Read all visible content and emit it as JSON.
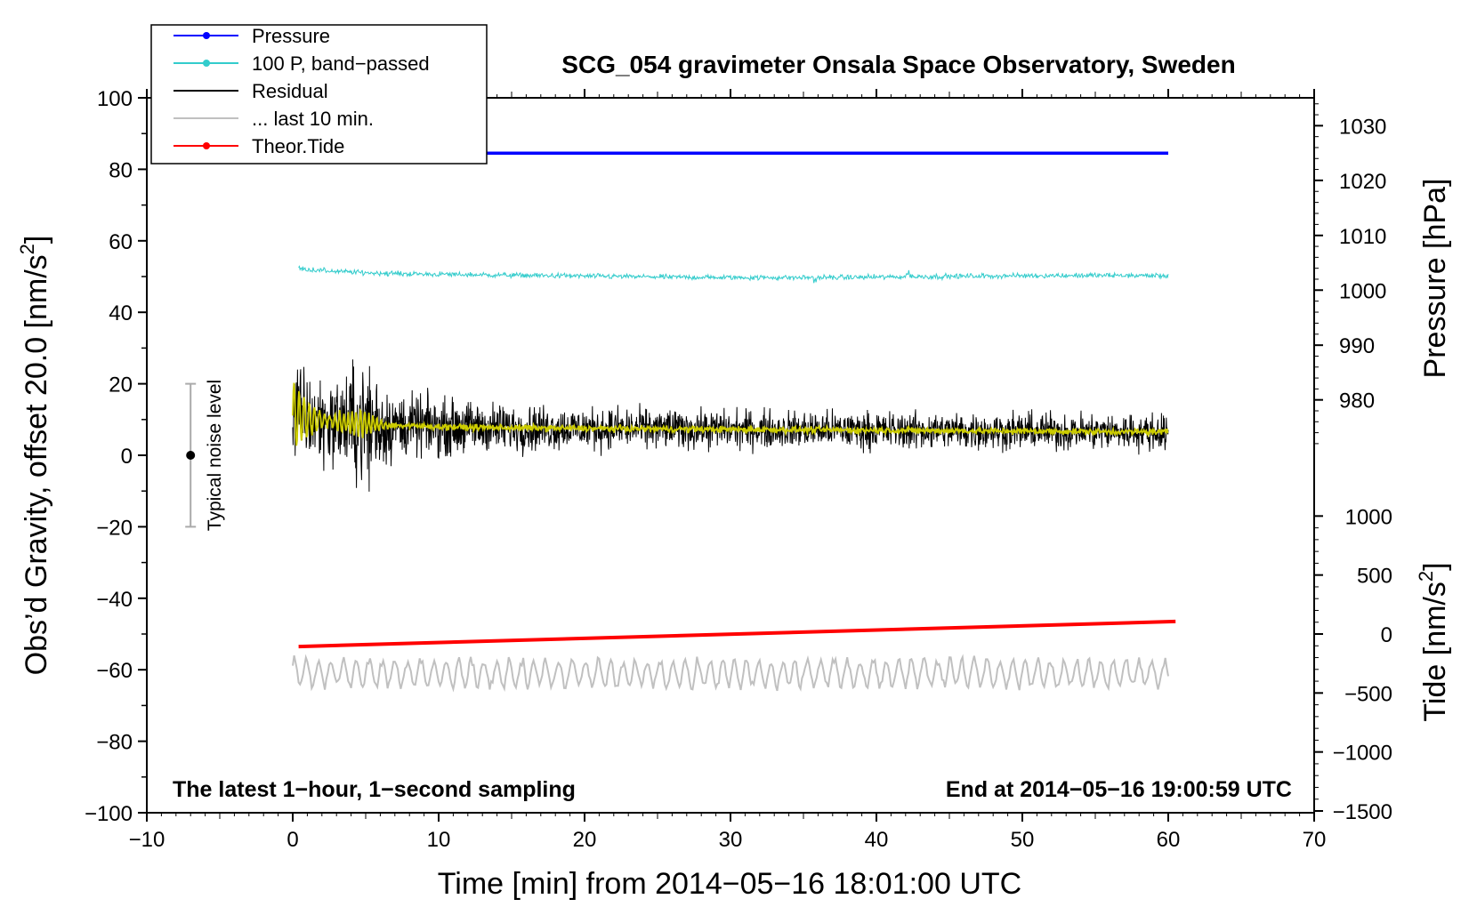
{
  "chart_data": {
    "type": "line",
    "title": "SCG_054 gravimeter Onsala Space Observatory, Sweden",
    "xlabel": "Time [min] from 2014−05−16 18:01:00 UTC",
    "ylabel_left": "Obs’d Gravity, offset 20.0 [nm/s2]",
    "ylabel_left_main": "Obs’d Gravity, offset 20.0 [nm/s",
    "ylabel_left_sup": "2",
    "ylabel_left_end": "]",
    "ylabel_right_pressure": "Pressure [hPa]",
    "ylabel_right_tide_main": "Tide [nm/s",
    "ylabel_right_tide_sup": "2",
    "ylabel_right_tide_end": "]",
    "xlim": [
      -10,
      70
    ],
    "ylim": [
      -100,
      100
    ],
    "x_ticks": [
      -10,
      0,
      10,
      20,
      30,
      40,
      50,
      60,
      70
    ],
    "x_tick_labels": [
      "−10",
      "0",
      "10",
      "20",
      "30",
      "40",
      "50",
      "60",
      "70"
    ],
    "y_ticks": [
      -100,
      -80,
      -60,
      -40,
      -20,
      0,
      20,
      40,
      60,
      80,
      100
    ],
    "y_tick_labels": [
      "−100",
      "−80",
      "−60",
      "−40",
      "−20",
      "0",
      "20",
      "40",
      "60",
      "80",
      "100"
    ],
    "pressure_ticks": [
      {
        "value": 980,
        "label": "980",
        "gravity_pos": 15.5
      },
      {
        "value": 990,
        "label": "990",
        "gravity_pos": 30.8
      },
      {
        "value": 1000,
        "label": "1000",
        "gravity_pos": 46.2
      },
      {
        "value": 1010,
        "label": "1010",
        "gravity_pos": 61.5
      },
      {
        "value": 1020,
        "label": "1020",
        "gravity_pos": 76.9
      },
      {
        "value": 1030,
        "label": "1030",
        "gravity_pos": 92.2
      }
    ],
    "tide_ticks": [
      {
        "value": 1000,
        "label": "1000",
        "gravity_pos": -17
      },
      {
        "value": 500,
        "label": "500",
        "gravity_pos": -33.5
      },
      {
        "value": 0,
        "label": "0",
        "gravity_pos": -50
      },
      {
        "value": -500,
        "label": "−500",
        "gravity_pos": -66.5
      },
      {
        "value": -1000,
        "label": "−1000",
        "gravity_pos": -83
      },
      {
        "value": -1500,
        "label": "−1500",
        "gravity_pos": -99.5
      }
    ],
    "series": [
      {
        "name": "Pressure",
        "color": "#0000ff",
        "x": [
          12,
          60
        ],
        "y": [
          84.5,
          84.5
        ]
      },
      {
        "name": "100 P, band−passed",
        "color": "#33cccc",
        "base": 50,
        "x_range": [
          0.4,
          60
        ]
      },
      {
        "name": "Residual",
        "color": "#000000",
        "base": 8,
        "x_range": [
          0,
          60
        ]
      },
      {
        "name": "... last 10 min.",
        "color": "#c0c0c0",
        "base": -61,
        "x_range": [
          0,
          60
        ]
      },
      {
        "name": "Theor.Tide",
        "color": "#ff0000",
        "x": [
          0.4,
          60.5
        ],
        "y": [
          -53.5,
          -46.5
        ]
      }
    ],
    "smoothed_residual_color": "#cccc00",
    "noise_bar": {
      "label": "Typical noise level",
      "x": -7,
      "y_center": 0,
      "y_low": -20,
      "y_high": 20
    },
    "annotation_left": "The latest 1−hour, 1−second sampling",
    "annotation_right": "End at 2014−05−16 19:00:59 UTC",
    "legend_position": "top-left"
  }
}
